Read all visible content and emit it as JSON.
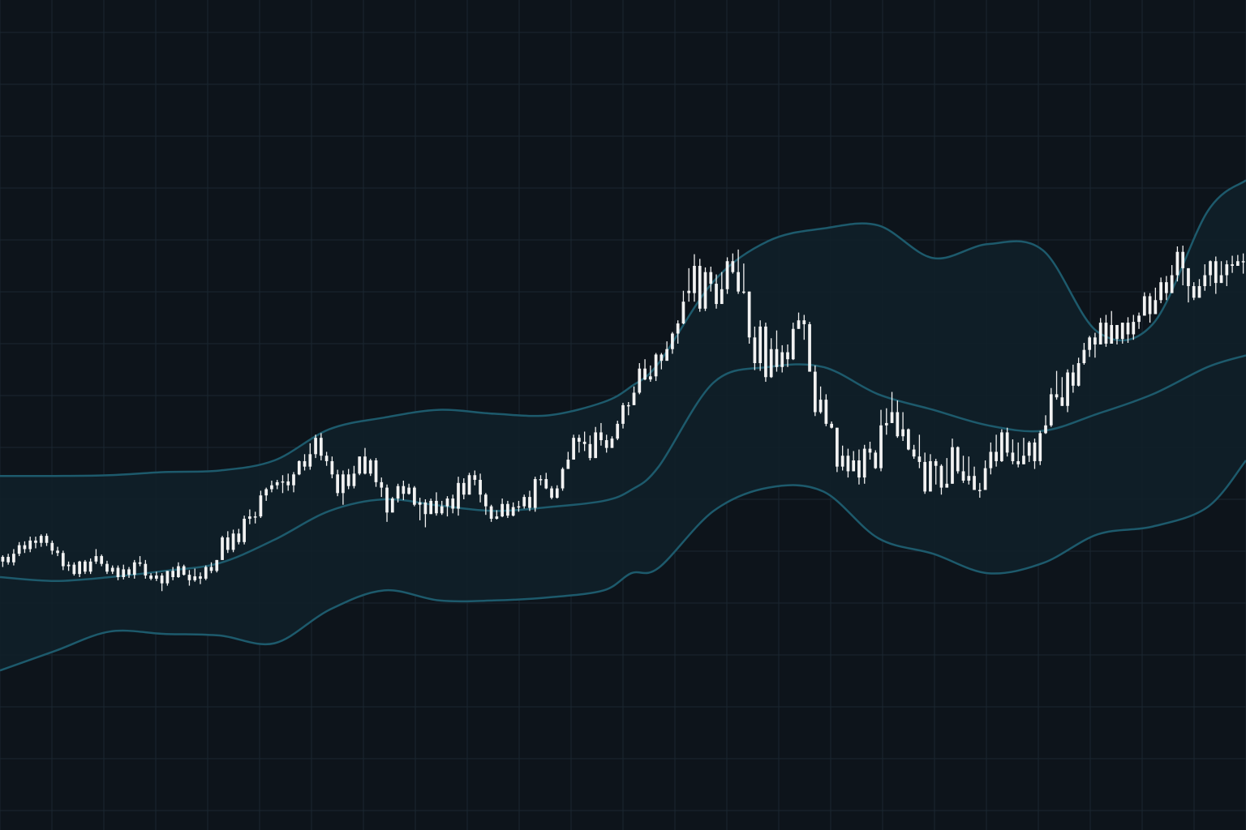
{
  "chart_data": {
    "type": "candlestick",
    "title": "",
    "xlabel": "",
    "ylabel": "",
    "indicator": "bollinger-bands",
    "grid": true,
    "legend": "none",
    "colors": {
      "background": "#0d141b",
      "grid": "#1a2630",
      "band_line": "#1d5a6c",
      "band_fill": "#112029",
      "candle": "#f2f2f2"
    },
    "ylim": [
      0,
      1000
    ],
    "xlim": [
      0,
      227
    ],
    "candles": [
      [
        320,
        326,
        328,
        313
      ],
      [
        326,
        319,
        330,
        316
      ],
      [
        319,
        330,
        336,
        315
      ],
      [
        330,
        341,
        345,
        327
      ],
      [
        341,
        336,
        346,
        331
      ],
      [
        336,
        347,
        352,
        332
      ],
      [
        347,
        344,
        352,
        337
      ],
      [
        344,
        353,
        355,
        339
      ],
      [
        353,
        344,
        356,
        340
      ],
      [
        344,
        334,
        347,
        329
      ],
      [
        334,
        331,
        339,
        327
      ],
      [
        331,
        314,
        334,
        309
      ],
      [
        314,
        316,
        320,
        308
      ],
      [
        316,
        304,
        319,
        302
      ],
      [
        304,
        320,
        321,
        300
      ],
      [
        320,
        307,
        322,
        304
      ],
      [
        307,
        320,
        324,
        304
      ],
      [
        320,
        327,
        336,
        317
      ],
      [
        327,
        317,
        329,
        314
      ],
      [
        317,
        307,
        321,
        304
      ],
      [
        307,
        312,
        315,
        304
      ],
      [
        312,
        300,
        315,
        296
      ],
      [
        300,
        310,
        316,
        297
      ],
      [
        310,
        303,
        313,
        299
      ],
      [
        303,
        319,
        322,
        298
      ],
      [
        319,
        317,
        327,
        314
      ],
      [
        317,
        302,
        322,
        298
      ],
      [
        302,
        298,
        305,
        296
      ],
      [
        298,
        302,
        307,
        295
      ],
      [
        302,
        292,
        305,
        282
      ],
      [
        292,
        308,
        308,
        289
      ],
      [
        308,
        300,
        313,
        296
      ],
      [
        300,
        314,
        319,
        299
      ],
      [
        314,
        303,
        316,
        302
      ],
      [
        303,
        296,
        309,
        289
      ],
      [
        296,
        301,
        311,
        294
      ],
      [
        301,
        298,
        306,
        291
      ],
      [
        298,
        313,
        315,
        296
      ],
      [
        313,
        308,
        319,
        305
      ],
      [
        308,
        322,
        322,
        306
      ],
      [
        322,
        351,
        353,
        322
      ],
      [
        351,
        335,
        359,
        331
      ],
      [
        335,
        356,
        361,
        332
      ],
      [
        356,
        345,
        362,
        342
      ],
      [
        345,
        375,
        379,
        342
      ],
      [
        375,
        378,
        387,
        368
      ],
      [
        378,
        378,
        384,
        369
      ],
      [
        378,
        405,
        411,
        376
      ],
      [
        405,
        413,
        415,
        398
      ],
      [
        413,
        418,
        424,
        409
      ],
      [
        418,
        422,
        425,
        413
      ],
      [
        422,
        423,
        431,
        408
      ],
      [
        423,
        418,
        433,
        411
      ],
      [
        418,
        432,
        435,
        409
      ],
      [
        432,
        449,
        450,
        431
      ],
      [
        449,
        442,
        458,
        437
      ],
      [
        442,
        458,
        472,
        438
      ],
      [
        458,
        479,
        483,
        453
      ],
      [
        479,
        456,
        485,
        450
      ],
      [
        456,
        449,
        461,
        443
      ],
      [
        449,
        432,
        455,
        427
      ],
      [
        432,
        408,
        438,
        404
      ],
      [
        408,
        432,
        437,
        393
      ],
      [
        432,
        417,
        439,
        413
      ],
      [
        417,
        433,
        443,
        414
      ],
      [
        433,
        455,
        455,
        431
      ],
      [
        455,
        433,
        466,
        432
      ],
      [
        433,
        450,
        452,
        430
      ],
      [
        450,
        422,
        453,
        416
      ],
      [
        422,
        415,
        428,
        403
      ],
      [
        415,
        383,
        419,
        371
      ],
      [
        383,
        401,
        403,
        385
      ],
      [
        401,
        417,
        420,
        396
      ],
      [
        417,
        407,
        424,
        399
      ],
      [
        407,
        415,
        420,
        406
      ],
      [
        415,
        393,
        417,
        391
      ],
      [
        393,
        396,
        402,
        373
      ],
      [
        396,
        381,
        400,
        364
      ],
      [
        381,
        398,
        401,
        382
      ],
      [
        398,
        382,
        409,
        379
      ],
      [
        382,
        391,
        398,
        380
      ],
      [
        391,
        401,
        404,
        378
      ],
      [
        401,
        388,
        406,
        382
      ],
      [
        388,
        421,
        429,
        379
      ],
      [
        421,
        406,
        427,
        400
      ],
      [
        406,
        431,
        434,
        416
      ],
      [
        431,
        425,
        437,
        418
      ],
      [
        425,
        406,
        433,
        396
      ],
      [
        406,
        391,
        408,
        380
      ],
      [
        391,
        375,
        393,
        371
      ],
      [
        375,
        378,
        386,
        374
      ],
      [
        378,
        394,
        401,
        377
      ],
      [
        394,
        379,
        398,
        376
      ],
      [
        379,
        390,
        396,
        378
      ],
      [
        390,
        391,
        398,
        384
      ],
      [
        391,
        403,
        406,
        388
      ],
      [
        403,
        389,
        411,
        385
      ],
      [
        389,
        426,
        429,
        384
      ],
      [
        426,
        426,
        431,
        418
      ],
      [
        426,
        414,
        434,
        413
      ],
      [
        414,
        402,
        417,
        400
      ],
      [
        402,
        414,
        418,
        401
      ],
      [
        414,
        439,
        441,
        411
      ],
      [
        439,
        451,
        461,
        439
      ],
      [
        451,
        479,
        483,
        451
      ],
      [
        479,
        474,
        483,
        460
      ],
      [
        474,
        471,
        487,
        462
      ],
      [
        471,
        453,
        482,
        450
      ],
      [
        453,
        486,
        493,
        453
      ],
      [
        486,
        476,
        498,
        469
      ],
      [
        476,
        466,
        483,
        460
      ],
      [
        466,
        478,
        481,
        468
      ],
      [
        478,
        497,
        501,
        476
      ],
      [
        497,
        521,
        524,
        491
      ],
      [
        521,
        521,
        525,
        508
      ],
      [
        521,
        537,
        545,
        521
      ],
      [
        537,
        568,
        575,
        535
      ],
      [
        568,
        554,
        580,
        553
      ],
      [
        554,
        558,
        572,
        551
      ],
      [
        558,
        586,
        588,
        552
      ],
      [
        586,
        578,
        588,
        567
      ],
      [
        578,
        593,
        603,
        578
      ],
      [
        593,
        613,
        615,
        587
      ],
      [
        613,
        626,
        630,
        600
      ],
      [
        626,
        654,
        668,
        625
      ],
      [
        668,
        665,
        697,
        654
      ],
      [
        665,
        700,
        715,
        654
      ],
      [
        700,
        645,
        709,
        641
      ],
      [
        645,
        692,
        698,
        642
      ],
      [
        692,
        677,
        699,
        667
      ],
      [
        677,
        651,
        689,
        645
      ],
      [
        651,
        670,
        692,
        664
      ],
      [
        670,
        706,
        711,
        664
      ],
      [
        706,
        692,
        716,
        690
      ],
      [
        692,
        667,
        721,
        664
      ],
      [
        667,
        667,
        703,
        664
      ],
      [
        667,
        608,
        650,
        600
      ],
      [
        608,
        575,
        622,
        566
      ],
      [
        575,
        622,
        630,
        565
      ],
      [
        622,
        557,
        627,
        551
      ],
      [
        557,
        593,
        607,
        556
      ],
      [
        593,
        570,
        617,
        564
      ],
      [
        570,
        589,
        598,
        563
      ],
      [
        589,
        580,
        599,
        570
      ],
      [
        580,
        619,
        627,
        579
      ],
      [
        619,
        630,
        640,
        619
      ],
      [
        630,
        625,
        637,
        605
      ],
      [
        625,
        564,
        628,
        565
      ],
      [
        564,
        512,
        572,
        507
      ],
      [
        512,
        528,
        545,
        510
      ],
      [
        528,
        497,
        535,
        494
      ],
      [
        497,
        492,
        500,
        491
      ],
      [
        492,
        442,
        471,
        435
      ],
      [
        442,
        456,
        469,
        437
      ],
      [
        456,
        436,
        465,
        428
      ],
      [
        436,
        450,
        462,
        443
      ],
      [
        450,
        428,
        464,
        419
      ],
      [
        428,
        465,
        470,
        420
      ],
      [
        465,
        460,
        474,
        451
      ],
      [
        460,
        440,
        463,
        439
      ],
      [
        440,
        495,
        515,
        436
      ],
      [
        495,
        498,
        517,
        483
      ],
      [
        498,
        512,
        538,
        508
      ],
      [
        512,
        481,
        527,
        479
      ],
      [
        481,
        490,
        512,
        475
      ],
      [
        490,
        464,
        491,
        463
      ],
      [
        464,
        455,
        470,
        452
      ],
      [
        455,
        448,
        483,
        440
      ],
      [
        448,
        410,
        460,
        407
      ],
      [
        410,
        449,
        458,
        417
      ],
      [
        449,
        443,
        452,
        419
      ],
      [
        443,
        415,
        445,
        406
      ],
      [
        415,
        420,
        453,
        415
      ],
      [
        420,
        467,
        478,
        420
      ],
      [
        467,
        436,
        468,
        433
      ],
      [
        436,
        424,
        456,
        421
      ],
      [
        424,
        430,
        455,
        419
      ],
      [
        430,
        412,
        442,
        418
      ],
      [
        412,
        412,
        421,
        402
      ],
      [
        412,
        440,
        450,
        417
      ],
      [
        440,
        461,
        473,
        432
      ],
      [
        461,
        449,
        483,
        442
      ],
      [
        449,
        486,
        490,
        448
      ],
      [
        486,
        460,
        492,
        455
      ],
      [
        460,
        449,
        477,
        445
      ],
      [
        449,
        445,
        473,
        441
      ],
      [
        445,
        456,
        479,
        445
      ],
      [
        456,
        473,
        475,
        448
      ],
      [
        473,
        449,
        478,
        439
      ],
      [
        449,
        485,
        488,
        444
      ],
      [
        485,
        495,
        508,
        484
      ],
      [
        495,
        535,
        543,
        493
      ],
      [
        535,
        531,
        565,
        528
      ],
      [
        531,
        520,
        557,
        521
      ],
      [
        520,
        563,
        567,
        512
      ],
      [
        563,
        546,
        573,
        537
      ],
      [
        546,
        575,
        582,
        545
      ],
      [
        575,
        592,
        601,
        573
      ],
      [
        592,
        608,
        610,
        583
      ],
      [
        608,
        599,
        614,
        582
      ],
      [
        599,
        627,
        633,
        602
      ],
      [
        627,
        600,
        637,
        596
      ],
      [
        600,
        624,
        642,
        603
      ],
      [
        624,
        606,
        622,
        599
      ],
      [
        606,
        627,
        620,
        600
      ],
      [
        627,
        612,
        634,
        601
      ],
      [
        612,
        628,
        637,
        605
      ],
      [
        628,
        636,
        640,
        619
      ],
      [
        636,
        661,
        666,
        638
      ],
      [
        661,
        638,
        665,
        627
      ],
      [
        638,
        656,
        672,
        639
      ],
      [
        656,
        679,
        685,
        652
      ],
      [
        679,
        665,
        687,
        656
      ],
      [
        665,
        688,
        701,
        673
      ],
      [
        688,
        718,
        725,
        680
      ],
      [
        718,
        697,
        726,
        675
      ],
      [
        697,
        674,
        683,
        653
      ],
      [
        674,
        659,
        679,
        656
      ],
      [
        659,
        674,
        683,
        660
      ],
      [
        674,
        688,
        702,
        668
      ],
      [
        688,
        706,
        707,
        674
      ],
      [
        706,
        678,
        712,
        664
      ],
      [
        678,
        688,
        706,
        680
      ],
      [
        688,
        702,
        707,
        674
      ],
      [
        702,
        700,
        713,
        691
      ],
      [
        700,
        706,
        714,
        706
      ],
      [
        706,
        706,
        716,
        690
      ]
    ],
    "upper_band": [
      [
        0,
        430
      ],
      [
        10,
        430
      ],
      [
        20,
        431
      ],
      [
        30,
        435
      ],
      [
        40,
        437
      ],
      [
        50,
        450
      ],
      [
        60,
        490
      ],
      [
        70,
        505
      ],
      [
        80,
        515
      ],
      [
        90,
        510
      ],
      [
        100,
        508
      ],
      [
        110,
        525
      ],
      [
        115,
        545
      ],
      [
        120,
        575
      ],
      [
        130,
        680
      ],
      [
        140,
        732
      ],
      [
        150,
        748
      ],
      [
        160,
        752
      ],
      [
        170,
        710
      ],
      [
        180,
        728
      ],
      [
        190,
        720
      ],
      [
        200,
        615
      ],
      [
        210,
        625
      ],
      [
        220,
        770
      ],
      [
        227,
        810
      ]
    ],
    "middle_band": [
      [
        0,
        300
      ],
      [
        10,
        295
      ],
      [
        20,
        300
      ],
      [
        30,
        308
      ],
      [
        40,
        318
      ],
      [
        50,
        348
      ],
      [
        60,
        385
      ],
      [
        70,
        400
      ],
      [
        80,
        392
      ],
      [
        90,
        385
      ],
      [
        100,
        390
      ],
      [
        110,
        398
      ],
      [
        115,
        412
      ],
      [
        120,
        442
      ],
      [
        130,
        550
      ],
      [
        140,
        570
      ],
      [
        150,
        570
      ],
      [
        160,
        535
      ],
      [
        170,
        515
      ],
      [
        180,
        495
      ],
      [
        190,
        488
      ],
      [
        200,
        510
      ],
      [
        210,
        535
      ],
      [
        220,
        570
      ],
      [
        227,
        585
      ]
    ],
    "lower_band": [
      [
        0,
        180
      ],
      [
        10,
        205
      ],
      [
        20,
        230
      ],
      [
        30,
        227
      ],
      [
        40,
        225
      ],
      [
        50,
        215
      ],
      [
        60,
        258
      ],
      [
        70,
        283
      ],
      [
        80,
        270
      ],
      [
        90,
        270
      ],
      [
        100,
        274
      ],
      [
        110,
        283
      ],
      [
        115,
        305
      ],
      [
        120,
        312
      ],
      [
        130,
        385
      ],
      [
        140,
        415
      ],
      [
        150,
        410
      ],
      [
        160,
        350
      ],
      [
        170,
        330
      ],
      [
        180,
        305
      ],
      [
        190,
        318
      ],
      [
        200,
        355
      ],
      [
        210,
        365
      ],
      [
        220,
        390
      ],
      [
        227,
        450
      ]
    ]
  }
}
